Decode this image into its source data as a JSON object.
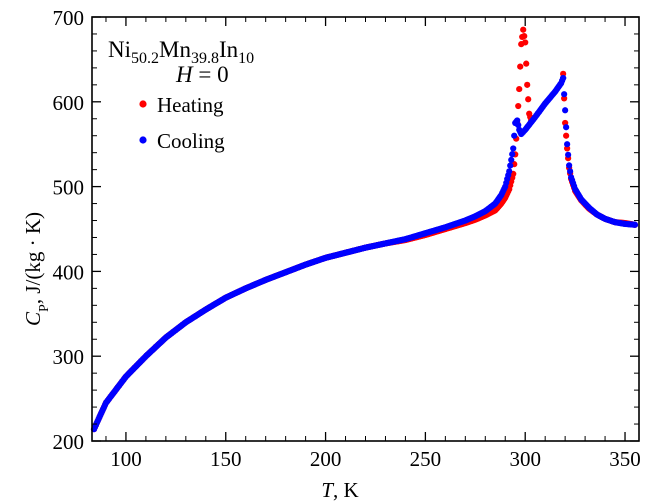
{
  "chart_data": {
    "type": "scatter",
    "title": "",
    "xlabel": {
      "main": "T",
      "unit": ", K"
    },
    "ylabel": {
      "main": "C",
      "sub": "P",
      "unit": ", J/(kg · K)"
    },
    "xlim": [
      83,
      357
    ],
    "ylim": [
      200,
      700
    ],
    "xticks": [
      100,
      150,
      200,
      250,
      300,
      350
    ],
    "yticks": [
      200,
      300,
      400,
      500,
      600,
      700
    ],
    "legend_position": "top-left",
    "annotations": {
      "compound_base": "Ni",
      "compound_parts": [
        {
          "text": "Ni",
          "sub": false
        },
        {
          "text": "50.2",
          "sub": true
        },
        {
          "text": "Mn",
          "sub": false
        },
        {
          "text": "39.8",
          "sub": true
        },
        {
          "text": "In",
          "sub": false
        },
        {
          "text": "10",
          "sub": true
        }
      ],
      "field_label": "H",
      "field_value": " = 0"
    },
    "series": [
      {
        "name": "Heating",
        "color": "#ff0000",
        "marker": "circle",
        "segments": [
          [
            [
              84,
              214
            ],
            [
              90,
              245
            ],
            [
              100,
              276
            ],
            [
              110,
              300
            ],
            [
              120,
              322
            ],
            [
              130,
              340
            ],
            [
              140,
              355
            ],
            [
              150,
              369
            ],
            [
              160,
              380
            ],
            [
              170,
              390
            ],
            [
              180,
              399
            ],
            [
              190,
              408
            ],
            [
              200,
              416
            ],
            [
              210,
              422
            ],
            [
              220,
              428
            ],
            [
              230,
              433
            ],
            [
              240,
              437
            ],
            [
              250,
              443
            ],
            [
              260,
              450
            ],
            [
              270,
              457
            ],
            [
              275,
              461
            ],
            [
              280,
              466
            ],
            [
              285,
              472
            ],
            [
              288,
              480
            ],
            [
              290,
              487
            ],
            [
              292,
              497
            ],
            [
              294,
              515
            ],
            [
              295,
              538
            ],
            [
              296,
              575
            ],
            [
              297,
              615
            ],
            [
              298,
              668
            ],
            [
              299,
              685
            ],
            [
              300,
              670
            ],
            [
              301,
              620
            ],
            [
              302,
              586
            ],
            [
              303,
              578
            ]
          ],
          [
            [
              319,
              633
            ],
            [
              320,
              575
            ],
            [
              321,
              545
            ],
            [
              322,
              522
            ],
            [
              323,
              509
            ],
            [
              325,
              495
            ],
            [
              328,
              484
            ],
            [
              332,
              474
            ],
            [
              336,
              467
            ],
            [
              340,
              462
            ],
            [
              345,
              458
            ],
            [
              350,
              457
            ],
            [
              355,
              455
            ]
          ]
        ]
      },
      {
        "name": "Cooling",
        "color": "#0000ff",
        "marker": "circle",
        "segments": [
          [
            [
              84,
              214
            ],
            [
              90,
              245
            ],
            [
              100,
              276
            ],
            [
              110,
              300
            ],
            [
              120,
              322
            ],
            [
              130,
              340
            ],
            [
              140,
              355
            ],
            [
              150,
              369
            ],
            [
              160,
              380
            ],
            [
              170,
              390
            ],
            [
              180,
              399
            ],
            [
              190,
              408
            ],
            [
              200,
              416
            ],
            [
              210,
              422
            ],
            [
              220,
              428
            ],
            [
              230,
              433
            ],
            [
              240,
              438
            ],
            [
              250,
              445
            ],
            [
              260,
              452
            ],
            [
              270,
              460
            ],
            [
              275,
              465
            ],
            [
              280,
              471
            ],
            [
              285,
              480
            ],
            [
              288,
              490
            ],
            [
              290,
              500
            ],
            [
              292,
              518
            ],
            [
              294,
              545
            ],
            [
              295,
              575
            ],
            [
              296,
              578
            ],
            [
              297,
              567
            ],
            [
              298,
              562
            ],
            [
              300,
              567
            ],
            [
              305,
              582
            ],
            [
              310,
              598
            ],
            [
              315,
              612
            ],
            [
              318,
              622
            ],
            [
              319,
              628
            ]
          ],
          [
            [
              319,
              628
            ],
            [
              320,
              590
            ],
            [
              321,
              550
            ],
            [
              322,
              525
            ],
            [
              323,
              511
            ],
            [
              325,
              497
            ],
            [
              328,
              485
            ],
            [
              332,
              475
            ],
            [
              336,
              467
            ],
            [
              340,
              462
            ],
            [
              345,
              458
            ],
            [
              350,
              456
            ],
            [
              355,
              455
            ]
          ]
        ]
      }
    ]
  }
}
